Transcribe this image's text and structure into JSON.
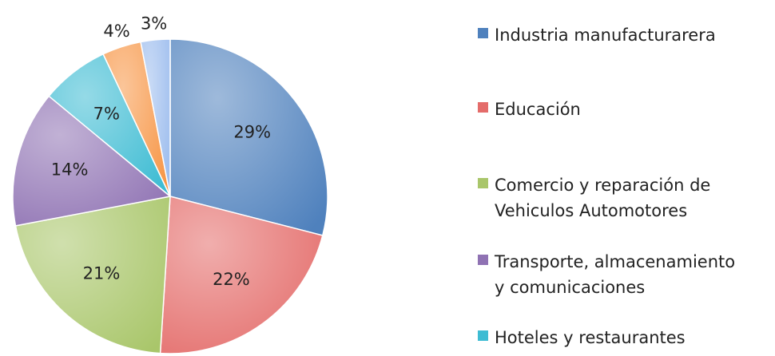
{
  "chart_data": {
    "type": "pie",
    "categories": [
      "Industria manufacturarera",
      "Educación",
      "Comercio y reparación de\nVehiculos Automotores",
      "Transporte, almacenamiento\ny comunicaciones",
      "Hoteles y restaurantes",
      null,
      null
    ],
    "values": [
      29,
      22,
      21,
      14,
      7,
      4,
      3
    ],
    "value_labels": [
      "29%",
      "22%",
      "21%",
      "14%",
      "7%",
      "4%",
      "3%"
    ],
    "colors": [
      "#4f81bd",
      "#e46c6a",
      "#a9c66a",
      "#8f72b3",
      "#3ebcd3",
      "#f79646",
      "#9dbdee"
    ]
  }
}
